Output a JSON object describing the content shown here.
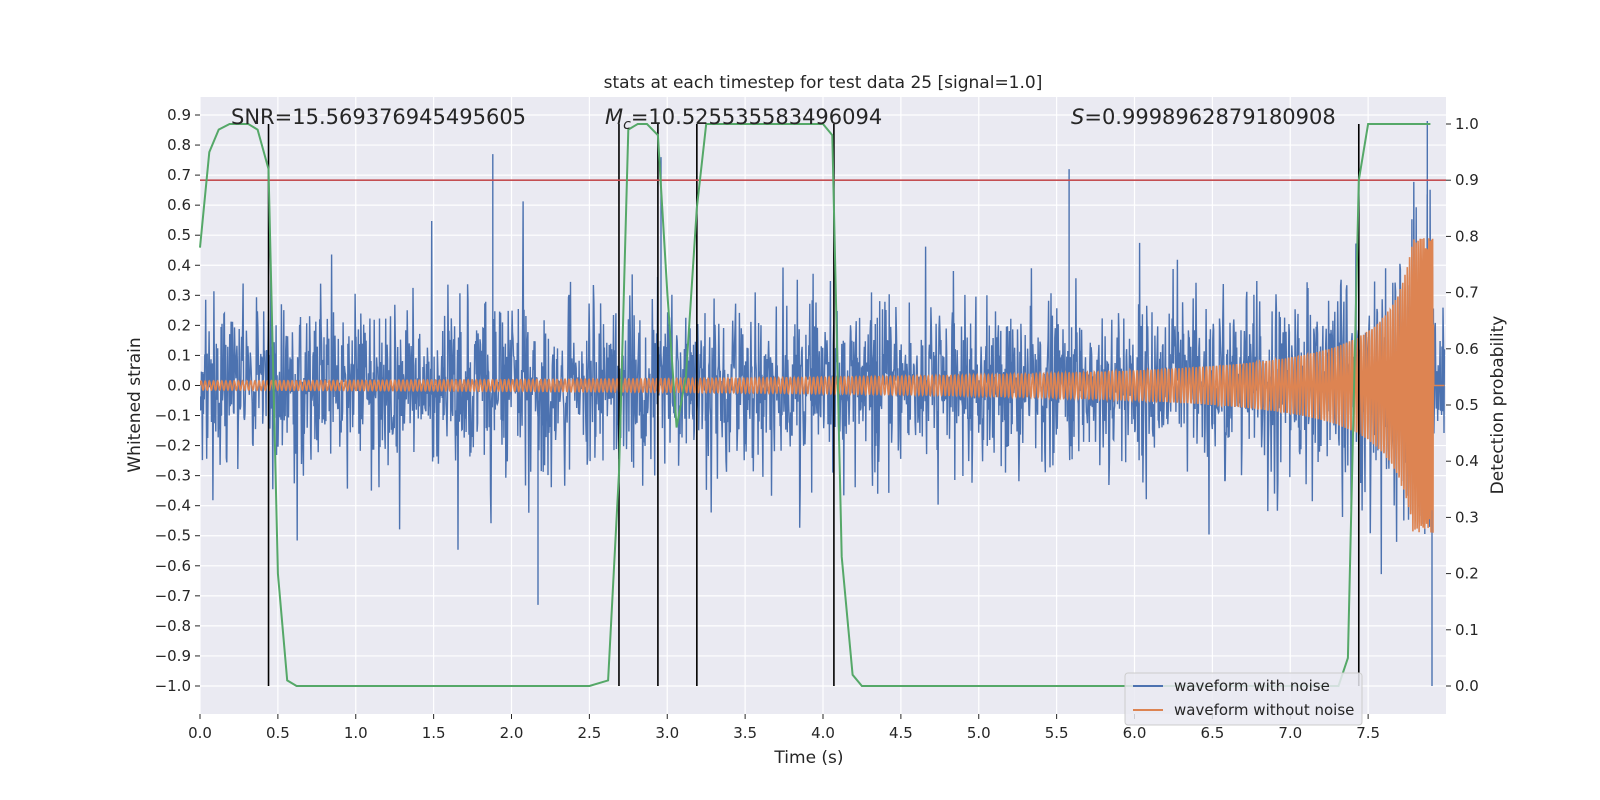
{
  "chart_data": {
    "type": "line",
    "title": "stats at each timestep for test data 25 [signal=1.0]",
    "xlabel": "Time (s)",
    "ylabel_left": "Whitened strain",
    "ylabel_right": "Detection probability",
    "xlim": [
      0.0,
      8.0
    ],
    "ylim_left": [
      -1.08,
      0.95
    ],
    "ylim_right": [
      0.0,
      1.0
    ],
    "x_ticks": [
      0.0,
      0.5,
      1.0,
      1.5,
      2.0,
      2.5,
      3.0,
      3.5,
      4.0,
      4.5,
      5.0,
      5.5,
      6.0,
      6.5,
      7.0,
      7.5
    ],
    "x_tick_labels": [
      "0.0",
      "0.5",
      "1.0",
      "1.5",
      "2.0",
      "2.5",
      "3.0",
      "3.5",
      "4.0",
      "4.5",
      "5.0",
      "5.5",
      "6.0",
      "6.5",
      "7.0",
      "7.5"
    ],
    "y_left_ticks": [
      0.9,
      0.8,
      0.7,
      0.6,
      0.5,
      0.4,
      0.3,
      0.2,
      0.1,
      0.0,
      -0.1,
      -0.2,
      -0.3,
      -0.4,
      -0.5,
      -0.6,
      -0.7,
      -0.8,
      -0.9,
      -1.0
    ],
    "y_left_tick_labels": [
      "0.9",
      "0.8",
      "0.7",
      "0.6",
      "0.5",
      "0.4",
      "0.3",
      "0.2",
      "0.1",
      "0.0",
      "−0.1",
      "−0.2",
      "−0.3",
      "−0.4",
      "−0.5",
      "−0.6",
      "−0.7",
      "−0.8",
      "−0.9",
      "−1.0"
    ],
    "y_right_ticks": [
      1.0,
      0.9,
      0.8,
      0.7,
      0.6,
      0.5,
      0.4,
      0.3,
      0.2,
      0.1,
      0.0
    ],
    "y_right_tick_labels": [
      "1.0",
      "0.9",
      "0.8",
      "0.7",
      "0.6",
      "0.5",
      "0.4",
      "0.3",
      "0.2",
      "0.1",
      "0.0"
    ],
    "annotations": {
      "snr": "SNR=15.569376945495605",
      "mc_symbol": "M",
      "mc_sub": "c",
      "mc_value": "=10.525535583496094",
      "s_symbol": "S",
      "s_value": "=0.9998962879180908"
    },
    "threshold": {
      "axis": "right",
      "value": 0.9,
      "color": "#c44e52"
    },
    "detection_transitions": [
      0.44,
      2.69,
      2.94,
      3.19,
      4.07,
      7.44
    ],
    "series": [
      {
        "name": "waveform with noise",
        "axis": "left",
        "color": "#4c72b0",
        "approx_envelope": {
          "typical_amplitude": 0.3,
          "max": 0.88,
          "min": -1.0
        }
      },
      {
        "name": "waveform without noise",
        "axis": "left",
        "color": "#dd8452",
        "chirp": {
          "t_start": 0.0,
          "t_merger": 7.92,
          "start_amplitude": 0.015,
          "peak_amplitude": 0.49,
          "peak_min": -0.64
        }
      },
      {
        "axis": "right",
        "color": "#55a868",
        "x": [
          0.0,
          0.06,
          0.12,
          0.19,
          0.25,
          0.31,
          0.37,
          0.44,
          0.5,
          0.56,
          0.62,
          0.69,
          0.75,
          1.0,
          1.5,
          2.0,
          2.5,
          2.62,
          2.69,
          2.75,
          2.81,
          2.87,
          2.94,
          3.0,
          3.06,
          3.12,
          3.19,
          3.25,
          3.31,
          3.5,
          3.75,
          4.0,
          4.06,
          4.12,
          4.19,
          4.25,
          4.5,
          5.0,
          6.0,
          7.0,
          7.31,
          7.37,
          7.44,
          7.5,
          7.62,
          7.75,
          7.9
        ],
        "y": [
          0.78,
          0.95,
          0.99,
          1.0,
          1.0,
          1.0,
          0.99,
          0.92,
          0.2,
          0.01,
          0.0,
          0.0,
          0.0,
          0.0,
          0.0,
          0.0,
          0.0,
          0.01,
          0.38,
          0.99,
          1.0,
          1.0,
          0.98,
          0.7,
          0.46,
          0.55,
          0.85,
          1.0,
          1.0,
          1.0,
          1.0,
          1.0,
          0.98,
          0.23,
          0.02,
          0.0,
          0.0,
          0.0,
          0.0,
          0.0,
          0.0,
          0.05,
          0.9,
          1.0,
          1.0,
          1.0,
          1.0
        ]
      }
    ],
    "legend": {
      "location": "lower-right",
      "entries": [
        "waveform with noise",
        "waveform without noise"
      ]
    }
  }
}
